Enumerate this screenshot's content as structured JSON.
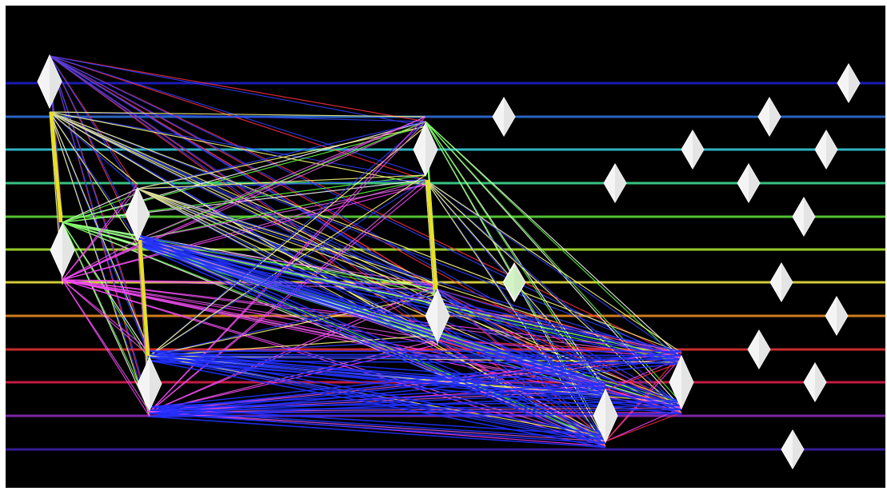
{
  "background": "#000000",
  "lines": [
    {
      "name": "band-1",
      "color": "#1e1ec8"
    },
    {
      "name": "band-2",
      "color": "#2e6fd8"
    },
    {
      "name": "band-3",
      "color": "#35c8d8"
    },
    {
      "name": "band-4",
      "color": "#3fd890"
    },
    {
      "name": "band-5",
      "color": "#5cd838"
    },
    {
      "name": "band-6",
      "color": "#a8e030"
    },
    {
      "name": "band-7",
      "color": "#e8e040"
    },
    {
      "name": "band-8",
      "color": "#e88a20"
    },
    {
      "name": "band-9",
      "color": "#e03030"
    },
    {
      "name": "band-10",
      "color": "#d8204a"
    },
    {
      "name": "band-11",
      "color": "#8a2ab8"
    },
    {
      "name": "band-12",
      "color": "#3a20a8"
    }
  ],
  "edge_colors": [
    "#ff40ff",
    "#60ff40",
    "#ffff80",
    "#ff3040",
    "#e060e0",
    "#ffffff",
    "#3040ff"
  ],
  "vertical_edge_color": "#e8e020",
  "node_count": 27
}
